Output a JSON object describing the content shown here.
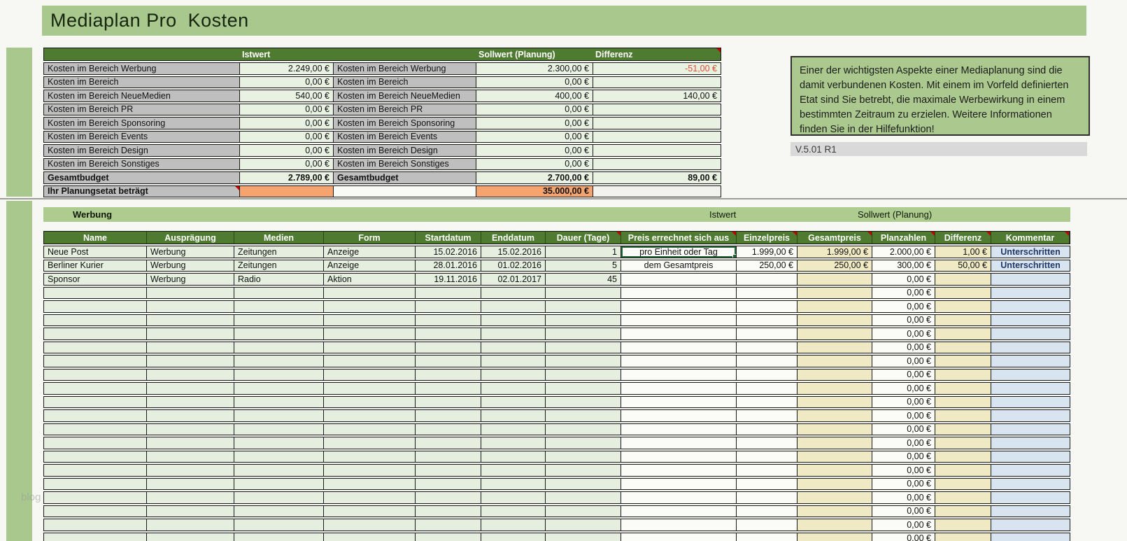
{
  "page": {
    "title": "Mediaplan Pro  Kosten",
    "version": "V.5.01 R1",
    "watermark": "blog"
  },
  "colors": {
    "banner_green": "#a9c88e",
    "header_green": "#4f7b31",
    "cell_light_green": "#e9f1e3",
    "label_gray": "#bfbfbf",
    "etat_orange": "#f5a470",
    "col_yellow": "#f0eac4",
    "col_blue": "#d9e4f1",
    "negative_red": "#e04a33",
    "selection_green": "#27663a"
  },
  "info_box": {
    "text": "Einer der wichtigsten Aspekte einer Mediaplanung sind die damit verbundenen Kosten. Mit einem im Vorfeld definierten Etat sind Sie betrebt, die maximale Werbewirkung in einem bestimmten Zeitraum zu erzielen. Weitere Informationen finden Sie in der Hilfefunktion!"
  },
  "budget_summary": {
    "headers": {
      "istwert": "Istwert",
      "sollwert": "Sollwert (Planung)",
      "differenz": "Differenz"
    },
    "rows": [
      {
        "label": "Kosten im Bereich Werbung",
        "ist": "2.249,00 €",
        "soll": "2.300,00 €",
        "diff": "-51,00 €",
        "diff_negative": true,
        "bold": false
      },
      {
        "label": "Kosten im Bereich",
        "ist": "0,00 €",
        "soll": "0,00 €",
        "diff": "",
        "diff_negative": false,
        "bold": false
      },
      {
        "label": "Kosten im Bereich NeueMedien",
        "ist": "540,00 €",
        "soll": "400,00 €",
        "diff": "140,00 €",
        "diff_negative": false,
        "bold": false
      },
      {
        "label": "Kosten im Bereich PR",
        "ist": "0,00 €",
        "soll": "0,00 €",
        "diff": "",
        "diff_negative": false,
        "bold": false
      },
      {
        "label": "Kosten im Bereich Sponsoring",
        "ist": "0,00 €",
        "soll": "0,00 €",
        "diff": "",
        "diff_negative": false,
        "bold": false
      },
      {
        "label": "Kosten im Bereich Events",
        "ist": "0,00 €",
        "soll": "0,00 €",
        "diff": "",
        "diff_negative": false,
        "bold": false
      },
      {
        "label": "Kosten im Bereich Design",
        "ist": "0,00 €",
        "soll": "0,00 €",
        "diff": "",
        "diff_negative": false,
        "bold": false
      },
      {
        "label": "Kosten im Bereich Sonstiges",
        "ist": "0,00 €",
        "soll": "0,00 €",
        "diff": "",
        "diff_negative": false,
        "bold": false
      },
      {
        "label": "Gesamtbudget",
        "ist": "2.789,00 €",
        "soll": "2.700,00 €",
        "diff": "89,00 €",
        "diff_negative": false,
        "bold": true
      }
    ],
    "etat_row": {
      "label": "Ihr Planungsetat beträgt",
      "ist": "",
      "soll": "35.000,00 €",
      "diff": ""
    }
  },
  "plan_section": {
    "title": "Werbung",
    "istwert_label": "Istwert",
    "sollwert_label": "Sollwert (Planung)",
    "columns": [
      "Name",
      "Ausprägung",
      "Medien",
      "Form",
      "Startdatum",
      "Enddatum",
      "Dauer (Tage)",
      "Preis errechnet sich aus",
      "Einzelpreis",
      "Gesamtpreis",
      "Planzahlen",
      "Differenz",
      "Kommentar"
    ],
    "comment_marker_columns": [
      6,
      7,
      8,
      9,
      10,
      11,
      12
    ],
    "rows": [
      {
        "cells": [
          "Neue Post",
          "Werbung",
          "Zeitungen",
          "Anzeige",
          "15.02.2016",
          "15.02.2016",
          "1",
          "pro Einheit oder Tag",
          "1.999,00 €",
          "1.999,00 €",
          "2.000,00 €",
          "1,00 €",
          "Unterschritten"
        ],
        "selected_cell": 7,
        "dropdown": true
      },
      {
        "cells": [
          "Berliner Kurier",
          "Werbung",
          "Zeitungen",
          "Anzeige",
          "28.01.2016",
          "01.02.2016",
          "5",
          "dem Gesamtpreis",
          "250,00 €",
          "250,00 €",
          "300,00 €",
          "50,00 €",
          "Unterschritten"
        ],
        "selected_cell": -1,
        "dropdown": false
      },
      {
        "cells": [
          "Sponsor",
          "Werbung",
          "Radio",
          "Aktion",
          "19.11.2016",
          "02.01.2017",
          "45",
          "",
          "",
          "",
          "0,00 €",
          "",
          ""
        ],
        "selected_cell": -1,
        "dropdown": false
      }
    ],
    "empty_rows": {
      "count": 19,
      "planzahlen": "0,00 €"
    }
  }
}
